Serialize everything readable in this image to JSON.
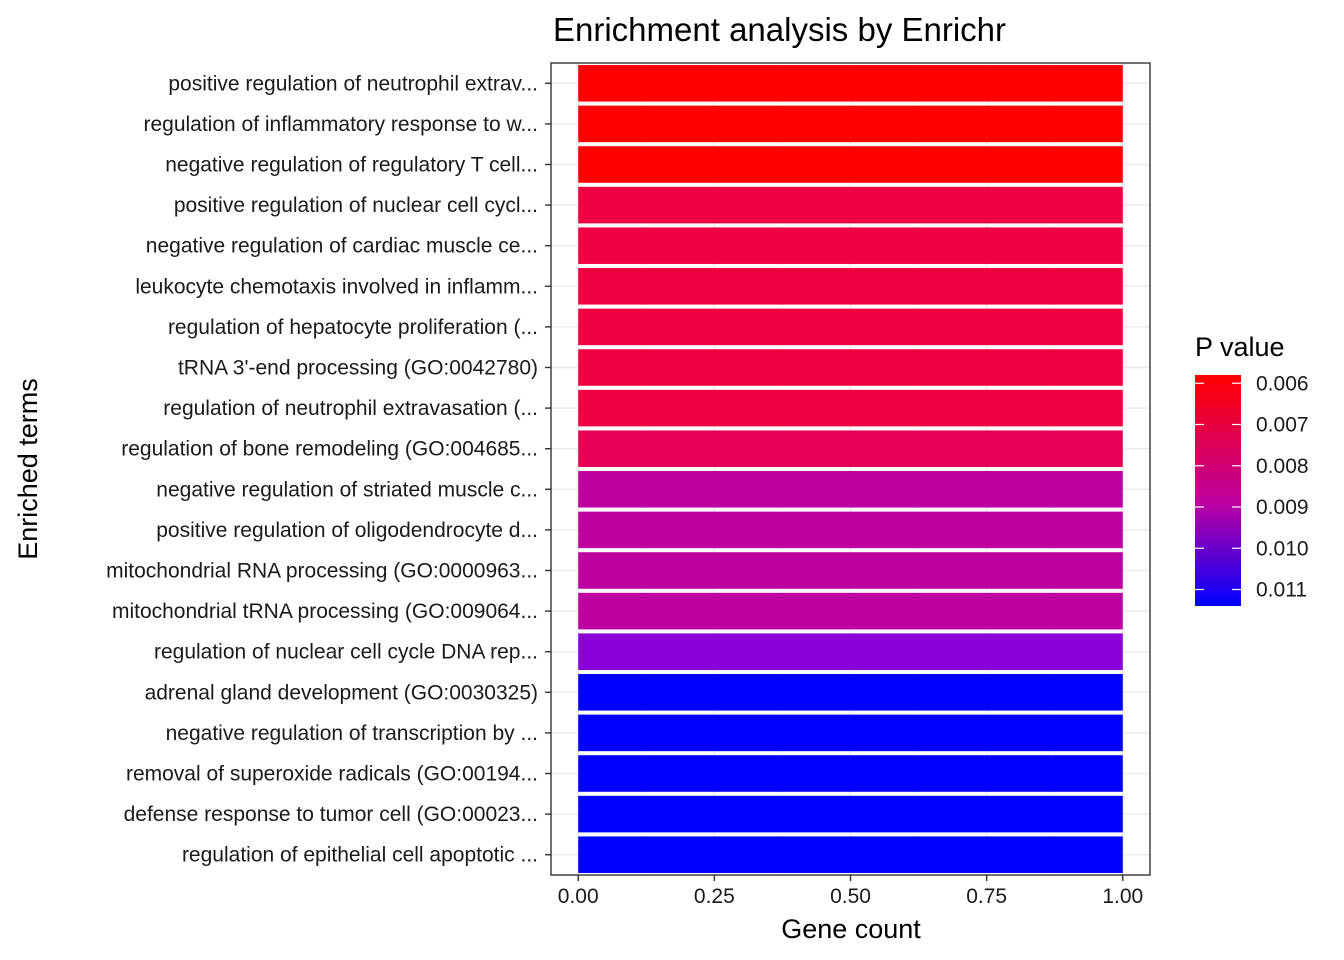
{
  "chart_data": {
    "type": "bar",
    "orientation": "horizontal",
    "title": "Enrichment analysis by Enrichr",
    "xlabel": "Gene count",
    "ylabel": "Enriched terms",
    "xlim": [
      -0.05,
      1.05
    ],
    "x_ticks": [
      "0.00",
      "0.25",
      "0.50",
      "0.75",
      "1.00"
    ],
    "grid": true,
    "categories": [
      "positive regulation of neutrophil extrav...",
      "regulation of inflammatory response to w...",
      "negative regulation of regulatory T cell...",
      "positive regulation of nuclear cell cycl...",
      "negative regulation of cardiac muscle ce...",
      "leukocyte chemotaxis involved in inflamm...",
      "regulation of hepatocyte proliferation (...",
      "tRNA 3'-end processing (GO:0042780)",
      "regulation of neutrophil extravasation (...",
      "regulation of bone remodeling (GO:004685...",
      "negative regulation of striated muscle c...",
      "positive regulation of oligodendrocyte d...",
      "mitochondrial RNA processing (GO:0000963...",
      "mitochondrial tRNA processing (GO:009064...",
      "regulation of nuclear cell cycle DNA rep...",
      "adrenal gland development (GO:0030325)",
      "negative regulation of transcription by ...",
      "removal of superoxide radicals (GO:00194...",
      "defense response to tumor cell (GO:00023...",
      "regulation of epithelial cell apoptotic ..."
    ],
    "values": [
      1,
      1,
      1,
      1,
      1,
      1,
      1,
      1,
      1,
      1,
      1,
      1,
      1,
      1,
      1,
      1,
      1,
      1,
      1,
      1
    ],
    "p_values": [
      0.0058,
      0.0058,
      0.0058,
      0.0068,
      0.0068,
      0.0068,
      0.0068,
      0.0068,
      0.0068,
      0.0072,
      0.0084,
      0.0084,
      0.0084,
      0.0084,
      0.0097,
      0.0114,
      0.0114,
      0.0114,
      0.0114,
      0.0114
    ],
    "bar_colors": [
      "#ff0000",
      "#ff0000",
      "#ff0000",
      "#ef0042",
      "#ef0042",
      "#ef0042",
      "#ef0042",
      "#ef0042",
      "#ef0042",
      "#e50055",
      "#bf00a0",
      "#bf00a0",
      "#bf00a0",
      "#bf00a0",
      "#8a00d8",
      "#0000ff",
      "#0000ff",
      "#0000ff",
      "#0000ff",
      "#0000ff"
    ],
    "legend": {
      "title": "P value",
      "position": "right",
      "labels": [
        "0.006",
        "0.007",
        "0.008",
        "0.009",
        "0.010",
        "0.011"
      ],
      "label_values": [
        0.006,
        0.007,
        0.008,
        0.009,
        0.01,
        0.011
      ],
      "range": [
        0.0058,
        0.0114
      ],
      "color_high_p": "#0000ff",
      "color_low_p": "#ff0000"
    }
  }
}
